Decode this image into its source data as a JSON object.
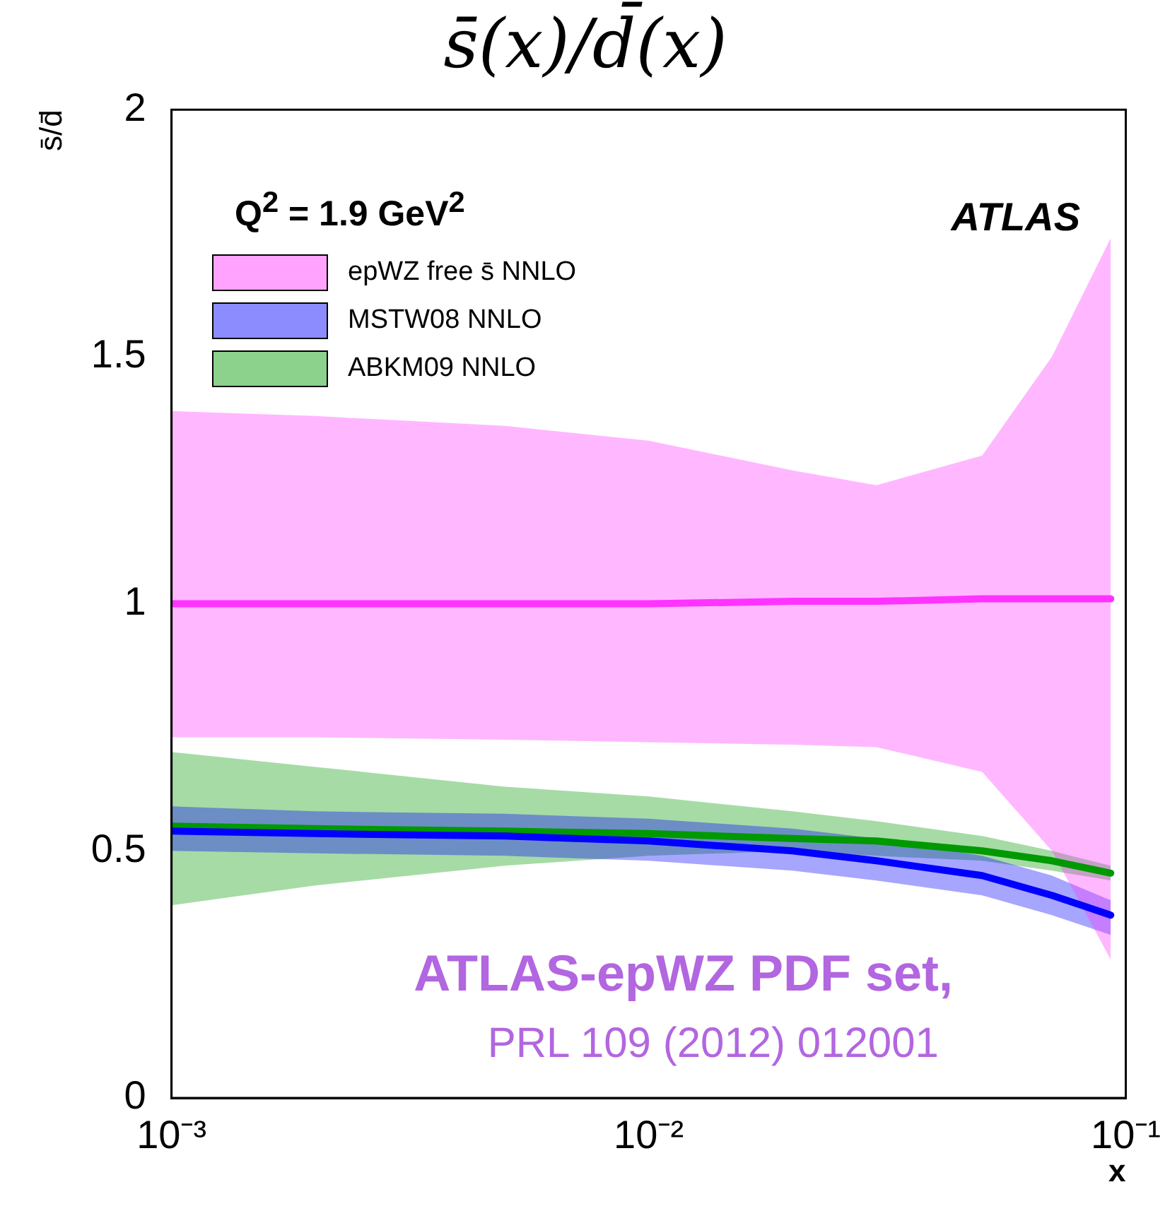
{
  "chart_data": {
    "type": "line",
    "title": "s̄(x)/d̄(x)",
    "xlabel": "x",
    "ylabel": "s̄/d̄",
    "log": "x",
    "xlim": [
      0.001,
      0.1
    ],
    "xticks": [
      {
        "value": 0.001,
        "label": "10⁻³"
      },
      {
        "value": 0.01,
        "label": "10⁻²"
      },
      {
        "value": 0.1,
        "label": "10⁻¹"
      }
    ],
    "ylim": [
      0,
      2
    ],
    "yticks": [
      0,
      0.5,
      1,
      1.5,
      2
    ],
    "grid": false,
    "legend": "top left",
    "marker": "none",
    "line_style": "solid",
    "x": [
      0.001,
      0.002,
      0.005,
      0.01,
      0.02,
      0.03,
      0.05,
      0.07,
      0.093
    ],
    "series": [
      {
        "name": "epWZ free s̄ NNLO",
        "color": "#ff33ff",
        "values": [
          1.0,
          1.0,
          1.0,
          1.0,
          1.005,
          1.005,
          1.01,
          1.01,
          1.01
        ],
        "lower": [
          0.73,
          0.73,
          0.725,
          0.72,
          0.715,
          0.71,
          0.66,
          0.5,
          0.28
        ],
        "upper": [
          1.39,
          1.38,
          1.36,
          1.33,
          1.27,
          1.24,
          1.3,
          1.5,
          1.74
        ]
      },
      {
        "name": "MSTW08 NNLO",
        "color": "#0000ff",
        "values": [
          0.54,
          0.535,
          0.53,
          0.52,
          0.5,
          0.48,
          0.45,
          0.41,
          0.37
        ],
        "lower": [
          0.5,
          0.495,
          0.49,
          0.48,
          0.46,
          0.44,
          0.41,
          0.37,
          0.33
        ],
        "upper": [
          0.59,
          0.58,
          0.575,
          0.565,
          0.545,
          0.525,
          0.49,
          0.45,
          0.4
        ]
      },
      {
        "name": "ABKM09 NNLO",
        "color": "#009900",
        "values": [
          0.55,
          0.545,
          0.54,
          0.535,
          0.525,
          0.52,
          0.5,
          0.48,
          0.455
        ],
        "lower": [
          0.39,
          0.43,
          0.47,
          0.49,
          0.5,
          0.49,
          0.48,
          0.46,
          0.44
        ],
        "upper": [
          0.7,
          0.67,
          0.63,
          0.61,
          0.58,
          0.56,
          0.53,
          0.5,
          0.47
        ]
      }
    ],
    "annotations": [
      "Q$^{2}$ =  1.9 GeV$^{2}$",
      "ATLAS",
      "ATLAS-epWZ PDF set,",
      "PRL 109 (2012) 012001"
    ]
  }
}
